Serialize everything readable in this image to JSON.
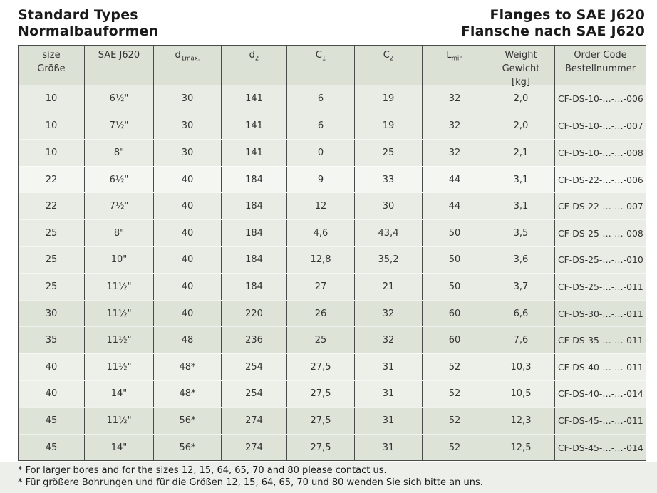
{
  "header": {
    "left": [
      "Standard Types",
      "Normalbauformen"
    ],
    "right": [
      "Flanges to SAE J620",
      "Flansche nach SAE J620"
    ]
  },
  "table": {
    "columns": [
      {
        "name": "size",
        "lines": [
          [
            {
              "t": "size"
            }
          ],
          [
            {
              "t": "Größe"
            }
          ]
        ]
      },
      {
        "name": "sae-j620",
        "lines": [
          [
            {
              "t": "SAE J620"
            }
          ]
        ]
      },
      {
        "name": "d1max",
        "lines": [
          [
            {
              "t": "d"
            },
            {
              "t": "1max.",
              "sub": true
            }
          ]
        ]
      },
      {
        "name": "d2",
        "lines": [
          [
            {
              "t": "d"
            },
            {
              "t": "2",
              "sub": true
            }
          ]
        ]
      },
      {
        "name": "c1",
        "lines": [
          [
            {
              "t": "C"
            },
            {
              "t": "1",
              "sub": true
            }
          ]
        ]
      },
      {
        "name": "c2",
        "lines": [
          [
            {
              "t": "C"
            },
            {
              "t": "2",
              "sub": true
            }
          ]
        ]
      },
      {
        "name": "lmin",
        "lines": [
          [
            {
              "t": "L"
            },
            {
              "t": "min",
              "sub": true
            }
          ]
        ]
      },
      {
        "name": "weight",
        "lines": [
          [
            {
              "t": "Weight"
            }
          ],
          [
            {
              "t": "Gewicht"
            }
          ],
          [
            {
              "t": "[kg]"
            }
          ]
        ]
      },
      {
        "name": "order-code",
        "lines": [
          [
            {
              "t": "Order Code"
            }
          ],
          [
            {
              "t": "Bestellnummer"
            }
          ]
        ]
      }
    ],
    "rows": [
      {
        "band": "a",
        "cells": [
          "10",
          "6½\"",
          "30",
          "141",
          "6",
          "19",
          "32",
          "2,0",
          "CF-DS-10-…-…-006"
        ]
      },
      {
        "band": "a",
        "cells": [
          "10",
          "7½\"",
          "30",
          "141",
          "6",
          "19",
          "32",
          "2,0",
          "CF-DS-10-…-…-007"
        ]
      },
      {
        "band": "a",
        "cells": [
          "10",
          "8\"",
          "30",
          "141",
          "0",
          "25",
          "32",
          "2,1",
          "CF-DS-10-…-…-008"
        ]
      },
      {
        "band": "b",
        "cells": [
          "22",
          "6½\"",
          "40",
          "184",
          "9",
          "33",
          "44",
          "3,1",
          "CF-DS-22-…-…-006"
        ]
      },
      {
        "band": "a",
        "cells": [
          "22",
          "7½\"",
          "40",
          "184",
          "12",
          "30",
          "44",
          "3,1",
          "CF-DS-22-…-…-007"
        ]
      },
      {
        "band": "a",
        "cells": [
          "25",
          "8\"",
          "40",
          "184",
          "4,6",
          "43,4",
          "50",
          "3,5",
          "CF-DS-25-…-…-008"
        ]
      },
      {
        "band": "a",
        "cells": [
          "25",
          "10\"",
          "40",
          "184",
          "12,8",
          "35,2",
          "50",
          "3,6",
          "CF-DS-25-…-…-010"
        ]
      },
      {
        "band": "a",
        "cells": [
          "25",
          "11½\"",
          "40",
          "184",
          "27",
          "21",
          "50",
          "3,7",
          "CF-DS-25-…-…-011"
        ]
      },
      {
        "band": "c",
        "cells": [
          "30",
          "11½\"",
          "40",
          "220",
          "26",
          "32",
          "60",
          "6,6",
          "CF-DS-30-…-…-011"
        ]
      },
      {
        "band": "c",
        "cells": [
          "35",
          "11½\"",
          "48",
          "236",
          "25",
          "32",
          "60",
          "7,6",
          "CF-DS-35-…-…-011"
        ]
      },
      {
        "band": "d",
        "cells": [
          "40",
          "11½\"",
          "48*",
          "254",
          "27,5",
          "31",
          "52",
          "10,3",
          "CF-DS-40-…-…-011"
        ]
      },
      {
        "band": "d",
        "cells": [
          "40",
          "14\"",
          "48*",
          "254",
          "27,5",
          "31",
          "52",
          "10,5",
          "CF-DS-40-…-…-014"
        ]
      },
      {
        "band": "c",
        "cells": [
          "45",
          "11½\"",
          "56*",
          "274",
          "27,5",
          "31",
          "52",
          "12,3",
          "CF-DS-45-…-…-011"
        ]
      },
      {
        "band": "c",
        "cells": [
          "45",
          "14\"",
          "56*",
          "274",
          "27,5",
          "31",
          "52",
          "12,5",
          "CF-DS-45-…-…-014"
        ]
      }
    ]
  },
  "footnotes": [
    "* For larger bores and for the sizes 12, 15, 64, 65, 70 and 80 please contact us.",
    "* Für größere Bohrungen und für die Größen 12, 15, 64, 65, 70 und 80 wenden Sie sich bitte an uns."
  ],
  "colors": {
    "header_bg": "#dce1d6",
    "band_a": "#e9ece4",
    "band_b": "#f4f6f1",
    "band_c": "#dee3d8",
    "band_d": "#edf0e9",
    "border": "#4a4a4a",
    "footnote_bg": "#edf0ea",
    "text": "#333333",
    "title_text": "#1a1a1a"
  }
}
